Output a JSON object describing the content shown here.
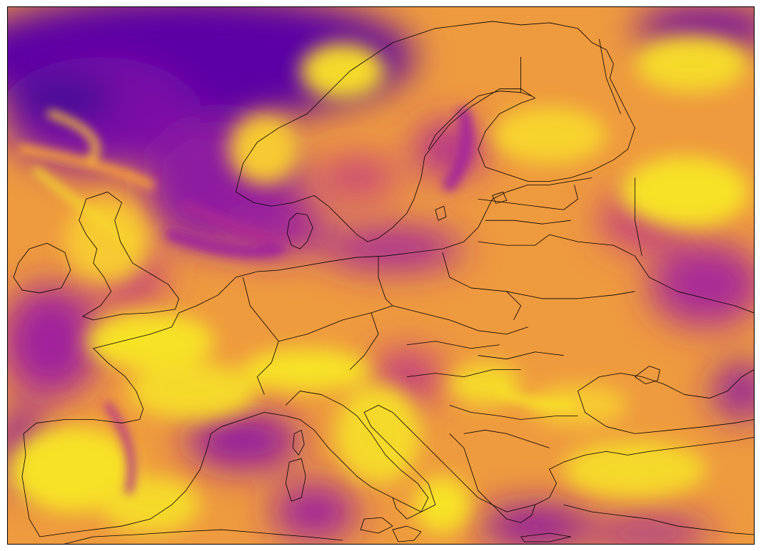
{
  "map": {
    "colormap": "plasma",
    "colormap_stops": [
      "#0d0887",
      "#6a00a8",
      "#b12a90",
      "#e16462",
      "#fca636",
      "#f0f921"
    ],
    "frame_color": "#000000",
    "coastline_color": "#000000",
    "region": "Europe",
    "has_title": false,
    "has_colorbar": false,
    "has_axis_ticks": false
  }
}
